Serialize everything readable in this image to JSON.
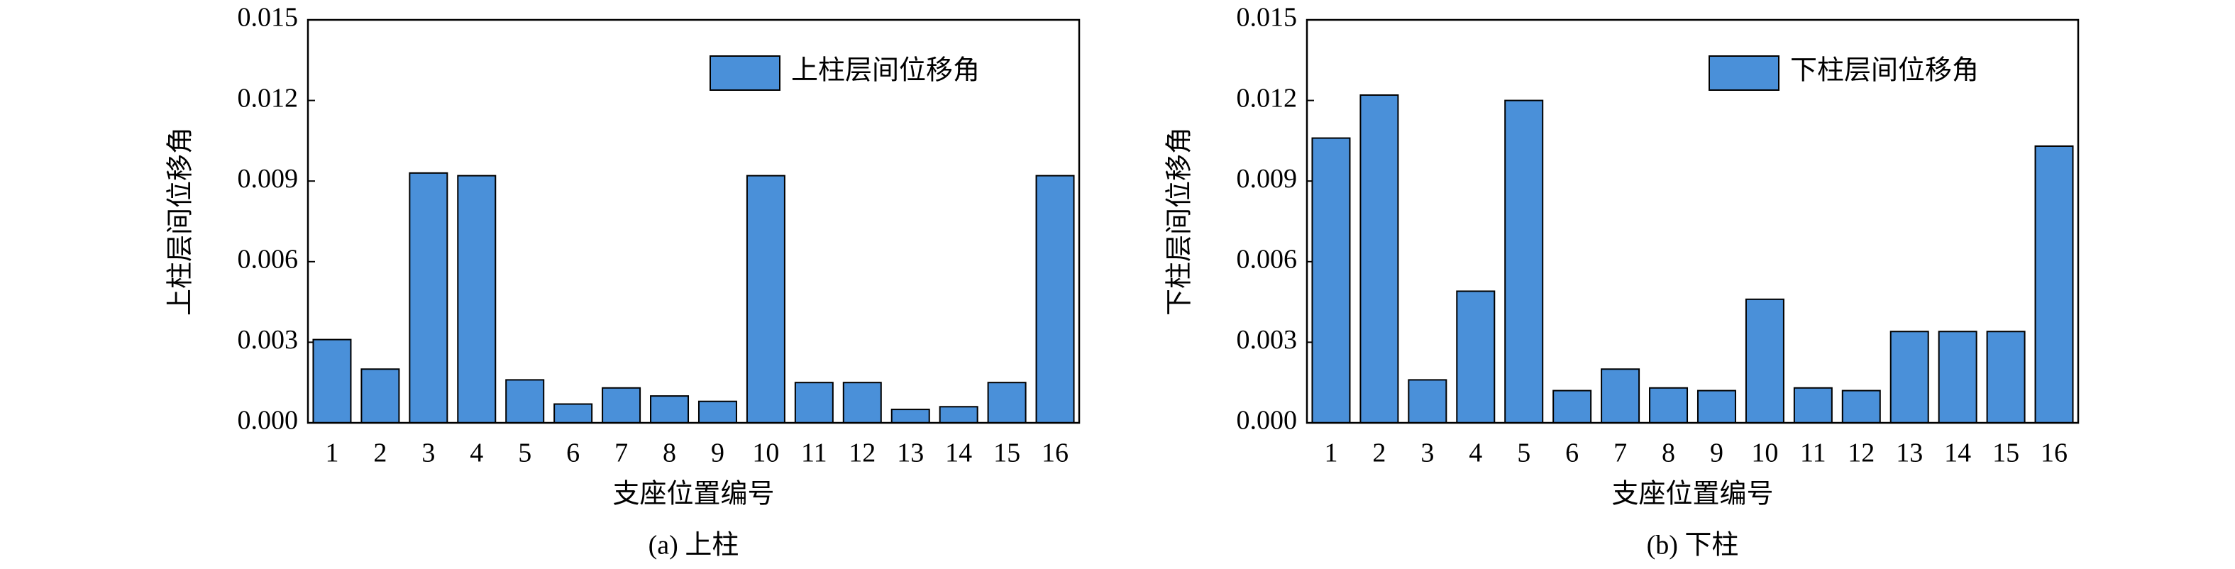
{
  "chart_data": [
    {
      "type": "bar",
      "caption": "(a) 上柱",
      "xlabel": "支座位置编号",
      "ylabel": "上柱层间位移角",
      "categories": [
        "1",
        "2",
        "3",
        "4",
        "5",
        "6",
        "7",
        "8",
        "9",
        "10",
        "11",
        "12",
        "13",
        "14",
        "15",
        "16"
      ],
      "series": [
        {
          "name": "上柱层间位移角",
          "color": "#4a90d9",
          "values": [
            0.0031,
            0.002,
            0.0093,
            0.0092,
            0.0016,
            0.0007,
            0.0013,
            0.001,
            0.0008,
            0.0092,
            0.0015,
            0.0015,
            0.0005,
            0.0006,
            0.0015,
            0.0092
          ]
        }
      ],
      "ylim": [
        0,
        0.015
      ],
      "yticks": [
        {
          "value": 0,
          "label": "0.000"
        },
        0.003,
        0.006,
        0.009,
        0.012,
        0.015
      ],
      "legend": "upper right"
    },
    {
      "type": "bar",
      "caption": "(b) 下柱",
      "xlabel": "支座位置编号",
      "ylabel": "下柱层间位移角",
      "categories": [
        "1",
        "2",
        "3",
        "4",
        "5",
        "6",
        "7",
        "8",
        "9",
        "10",
        "11",
        "12",
        "13",
        "14",
        "15",
        "16"
      ],
      "series": [
        {
          "name": "下柱层间位移角",
          "color": "#4a90d9",
          "values": [
            0.0106,
            0.0122,
            0.0016,
            0.0049,
            0.012,
            0.0012,
            0.002,
            0.0013,
            0.0012,
            0.0046,
            0.0013,
            0.0012,
            0.0034,
            0.0034,
            0.0034,
            0.0103
          ]
        }
      ],
      "ylim": [
        0,
        0.015
      ],
      "yticks": [
        {
          "value": 0,
          "label": "0.000"
        },
        0.003,
        0.006,
        0.009,
        0.012,
        0.015
      ],
      "legend": "upper right"
    }
  ]
}
